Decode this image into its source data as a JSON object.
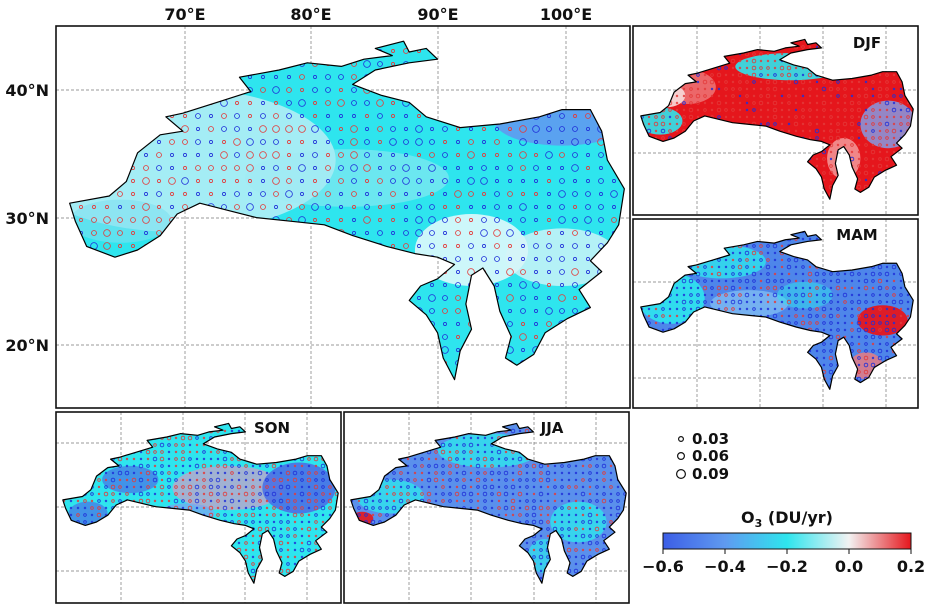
{
  "colors": {
    "neg_strong": "#3c5ee6",
    "neg_mid": "#7fa2f0",
    "cyan": "#2ee5ee",
    "pale": "#e8fbfd",
    "pos_strong": "#e5161c",
    "circle_pos": "#e33a3a",
    "circle_neg": "#2030d8"
  },
  "main_map": {
    "lon_labels": [
      "70°E",
      "80°E",
      "90°E",
      "100°E"
    ],
    "lat_labels": [
      "40°N",
      "30°N",
      "20°N"
    ]
  },
  "seasons": [
    "DJF",
    "MAM",
    "SON",
    "JJA"
  ],
  "size_legend": {
    "items": [
      "0.03",
      "0.06",
      "0.09"
    ]
  },
  "colorbar": {
    "title_main": "O",
    "title_sub": "3",
    "title_units": " (DU/yr)",
    "ticks": [
      "−0.6",
      "−0.4",
      "−0.2",
      "0.0",
      "0.2"
    ],
    "vmin": -0.6,
    "vmax": 0.2,
    "stops": [
      {
        "value": -0.6,
        "color": "#3c5ee6"
      },
      {
        "value": -0.4,
        "color": "#5f9af0"
      },
      {
        "value": -0.2,
        "color": "#2ee5ee"
      },
      {
        "value": 0.0,
        "color": "#f2f2f2"
      },
      {
        "value": 0.2,
        "color": "#e5161c"
      }
    ]
  }
}
